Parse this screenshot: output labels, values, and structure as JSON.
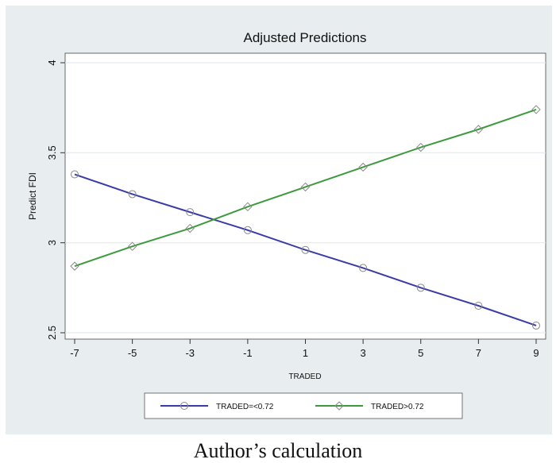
{
  "chart_data": {
    "type": "line",
    "title": "Adjusted Predictions",
    "xlabel": "TRADED",
    "ylabel": "Predict FDI",
    "x": [
      -7,
      -5,
      -3,
      -1,
      1,
      3,
      5,
      7,
      9
    ],
    "x_ticks": [
      "-7",
      "-5",
      "-3",
      "-1",
      "1",
      "3",
      "5",
      "7",
      "9"
    ],
    "y_ticks": [
      "2.5",
      "3",
      "3.5",
      "4"
    ],
    "xlim": [
      -7,
      9
    ],
    "ylim": [
      2.5,
      4
    ],
    "grid": true,
    "legend_position": "bottom",
    "series": [
      {
        "name": "TRADED=<0.72",
        "color": "#3a3aa8",
        "marker": "circle",
        "values": [
          3.38,
          3.27,
          3.17,
          3.07,
          2.96,
          2.86,
          2.75,
          2.65,
          2.54
        ]
      },
      {
        "name": "TRADED>0.72",
        "color": "#3c9a3c",
        "marker": "diamond",
        "values": [
          2.87,
          2.98,
          3.08,
          3.2,
          3.31,
          3.42,
          3.53,
          3.63,
          3.74
        ]
      }
    ]
  },
  "caption": "Author’s calculation"
}
